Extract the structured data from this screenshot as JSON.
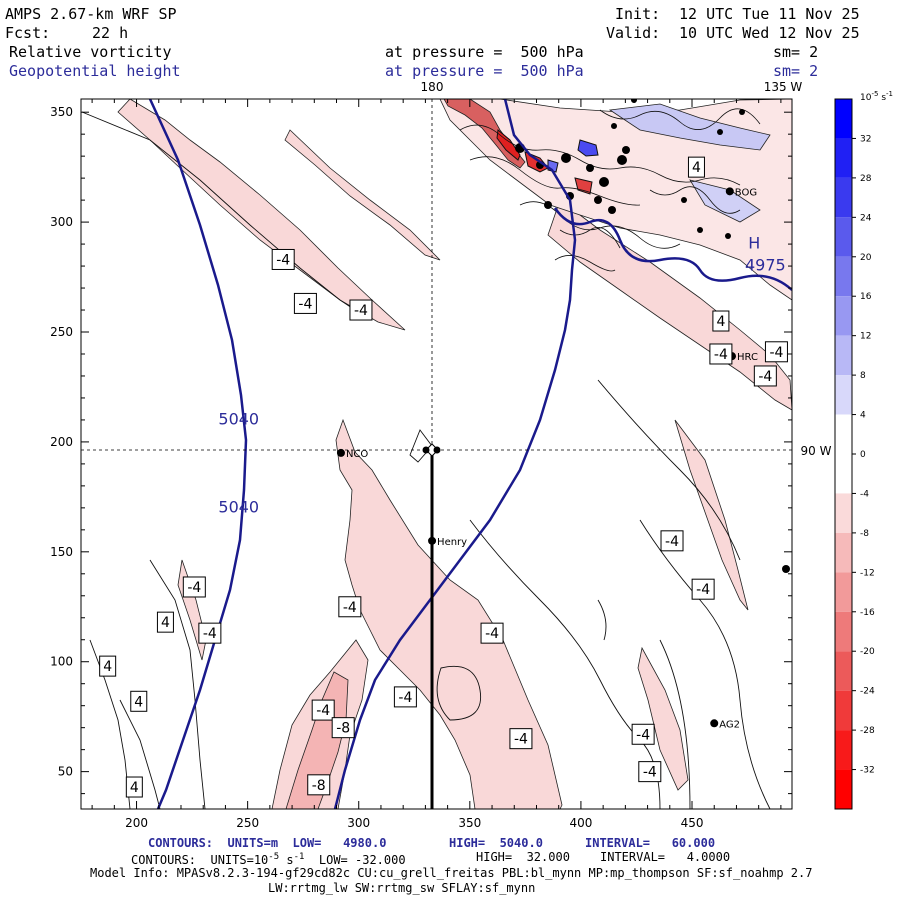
{
  "header": {
    "model": "AMPS 2.67-km WRF SP",
    "fcst_label": "Fcst:",
    "fcst_value": "22 h",
    "init_label": "Init:",
    "init_value": "12 UTC Tue 11 Nov 25",
    "valid_label": "Valid:",
    "valid_value": "10 UTC Wed 12 Nov 25",
    "field1": "Relative vorticity",
    "field1_level": "at pressure =  500 hPa",
    "field1_sm": "sm= 2",
    "field2": "Geopotential height",
    "field2_level": "at pressure =  500 hPa",
    "field2_sm": "sm= 2"
  },
  "map": {
    "meridian_label": "180",
    "lat_label_top": "135 W",
    "lat_label_right": "90 W",
    "stations": [
      {
        "name": "NCO",
        "x": 292,
        "y": 195
      },
      {
        "name": "Henry",
        "x": 333,
        "y": 155
      },
      {
        "name": "AG2",
        "x": 460,
        "y": 72
      },
      {
        "name": "HRC",
        "x": 468,
        "y": 239
      },
      {
        "name": "BOG",
        "x": 467,
        "y": 314
      }
    ],
    "height_labels": [
      {
        "text": "5040",
        "x": 246,
        "y": 208
      },
      {
        "text": "5040",
        "x": 246,
        "y": 168
      },
      {
        "text": "4975",
        "x": 483,
        "y": 278
      },
      {
        "text": "H",
        "x": 478,
        "y": 288
      }
    ],
    "vorticity_labels": [
      {
        "text": "-4",
        "x": 266,
        "y": 283
      },
      {
        "text": "-4",
        "x": 276,
        "y": 263
      },
      {
        "text": "-4",
        "x": 301,
        "y": 260
      },
      {
        "text": "4",
        "x": 452,
        "y": 325
      },
      {
        "text": "4",
        "x": 463,
        "y": 255
      },
      {
        "text": "-4",
        "x": 463,
        "y": 240
      },
      {
        "text": "-4",
        "x": 488,
        "y": 241
      },
      {
        "text": "-4",
        "x": 483,
        "y": 230
      },
      {
        "text": "-4",
        "x": 441,
        "y": 155
      },
      {
        "text": "-4",
        "x": 455,
        "y": 133
      },
      {
        "text": "-4",
        "x": 226,
        "y": 134
      },
      {
        "text": "4",
        "x": 213,
        "y": 118
      },
      {
        "text": "-4",
        "x": 233,
        "y": 113
      },
      {
        "text": "4",
        "x": 187,
        "y": 98
      },
      {
        "text": "4",
        "x": 201,
        "y": 82
      },
      {
        "text": "4",
        "x": 199,
        "y": 43
      },
      {
        "text": "-4",
        "x": 296,
        "y": 125
      },
      {
        "text": "-4",
        "x": 360,
        "y": 113
      },
      {
        "text": "-4",
        "x": 321,
        "y": 84
      },
      {
        "text": "-4",
        "x": 284,
        "y": 78
      },
      {
        "text": "-8",
        "x": 293,
        "y": 70
      },
      {
        "text": "-8",
        "x": 282,
        "y": 44
      },
      {
        "text": "-4",
        "x": 373,
        "y": 65
      },
      {
        "text": "-4",
        "x": 428,
        "y": 67
      },
      {
        "text": "-4",
        "x": 431,
        "y": 50
      }
    ]
  },
  "chart_data": {
    "type": "heatmap",
    "title": "Relative vorticity (shaded/contoured) and Geopotential height at 500 hPa",
    "x_range": [
      175,
      495
    ],
    "y_range": [
      33,
      356
    ],
    "x_ticks": [
      200,
      250,
      300,
      350,
      400,
      450
    ],
    "y_ticks": [
      50,
      100,
      150,
      200,
      250,
      300,
      350
    ],
    "colorbar": {
      "units_label": "10",
      "units_exp": "-5",
      "units_suffix": "s",
      "units_exp2": "-1",
      "ticks": [
        "32",
        "28",
        "24",
        "20",
        "16",
        "12",
        "8",
        "4",
        "0",
        "-4",
        "-8",
        "-12",
        "-16",
        "-20",
        "-24",
        "-28",
        "-32"
      ],
      "colors": [
        "#0000ff",
        "#2020f4",
        "#3a3aef",
        "#5a5aed",
        "#7878ee",
        "#9898f2",
        "#b8b8f6",
        "#d8d8fa",
        "#ffffff",
        "#ffffff",
        "#fadada",
        "#f6baba",
        "#f29a9a",
        "#ee7a7a",
        "#ec5a5a",
        "#f03a3a",
        "#f81a1a",
        "#ff0000"
      ]
    },
    "contour_height": {
      "units": "m",
      "low": 4980.0,
      "high": 5040.0,
      "interval": 60.0
    },
    "contour_vorticity": {
      "low": -32.0,
      "high": 32.0,
      "interval": 4.0
    }
  },
  "footer": {
    "c1_label": "CONTOURS:  UNITS=m  LOW=   4980.0",
    "c1_high": "HIGH=  5040.0",
    "c1_int": "INTERVAL=   60.000",
    "c2_pre": "CONTOURS:  UNITS=10",
    "c2_exp": "-5",
    "c2_mid": " s",
    "c2_exp2": "-1",
    "c2_low": "  LOW= -32.000",
    "c2_high": "HIGH=  32.000",
    "c2_int": "INTERVAL=   4.0000",
    "model_info": "Model Info: MPASv8.2.3-194-gf29cd82c CU:cu_grell_freitas PBL:bl_mynn MP:mp_thompson SF:sf_noahmp 2.7",
    "model_info2": "LW:rrtmg_lw SW:rrtmg_sw SFLAY:sf_mynn"
  }
}
